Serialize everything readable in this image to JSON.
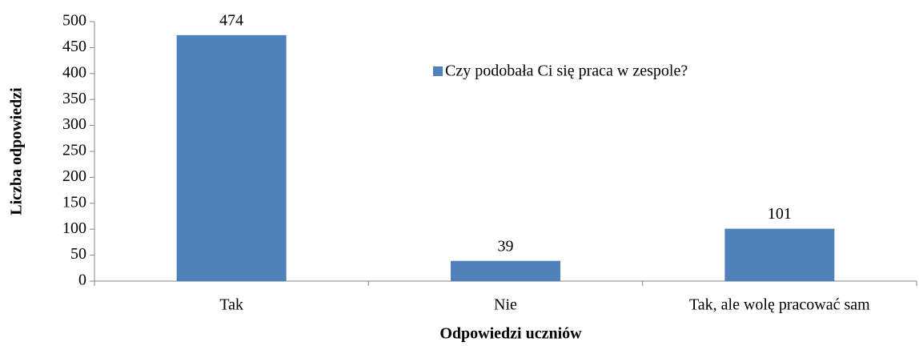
{
  "chart_data": {
    "type": "bar",
    "x_label": "Odpowiedzi uczniów",
    "y_label": "Liczba odpowiedzi",
    "categories": [
      "Tak",
      "Nie",
      "Tak, ale wolę pracować sam"
    ],
    "series": [
      {
        "name": "Czy podobała Ci się praca w zespole?",
        "color": "#4f81bd",
        "values": [
          474,
          39,
          101
        ]
      }
    ],
    "ylim": [
      0,
      500
    ],
    "yticks": [
      0,
      50,
      100,
      150,
      200,
      250,
      300,
      350,
      400,
      450,
      500
    ],
    "grid": false,
    "legend": "top-center"
  }
}
